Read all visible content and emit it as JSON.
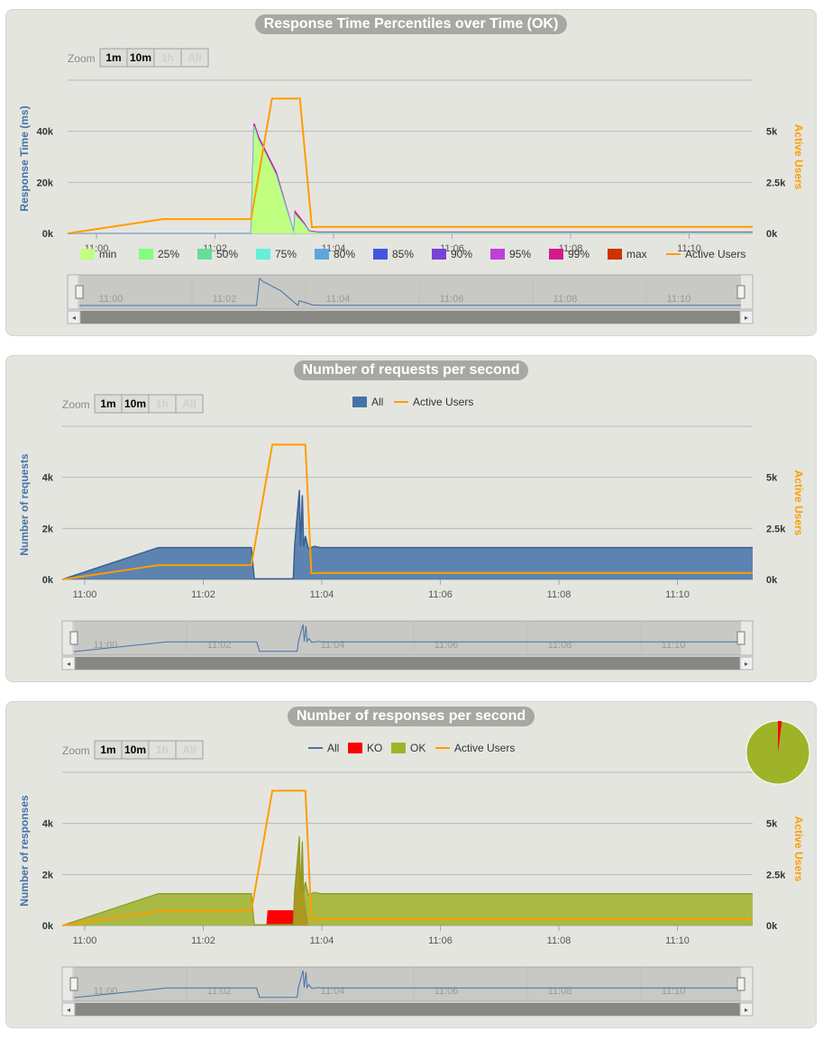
{
  "zoom_label": "Zoom",
  "zoom_buttons": [
    "1m",
    "10m",
    "1h",
    "All"
  ],
  "colors": {
    "panel_bg": "#e5e5e0",
    "active_users": "#ff9d00",
    "requests_all": "#4572a7",
    "responses_ok": "#9fb328",
    "responses_ko": "#ff0000",
    "percentile_min": "#c0ff80",
    "percentile_25": "#80ff80",
    "percentile_50": "#66dd99",
    "percentile_75": "#66eedd",
    "percentile_80": "#5ba6e0",
    "percentile_85": "#4455e0",
    "percentile_90": "#7a40d8",
    "percentile_95": "#c040d8",
    "percentile_99": "#d41a8a",
    "percentile_max": "#cc3300"
  },
  "chart_data": [
    {
      "type": "area",
      "title": "Response Time Percentiles over Time (OK)",
      "ylabel": "Response Time (ms)",
      "y2label": "Active Users",
      "xticks": [
        "11:00",
        "11:02",
        "11:04",
        "11:06",
        "11:08",
        "11:10"
      ],
      "yticks": [
        "0k",
        "20k",
        "40k"
      ],
      "y2ticks": [
        "0k",
        "2.5k",
        "5k"
      ],
      "ylim": [
        0,
        60000
      ],
      "y2lim": [
        0,
        7500
      ],
      "xlim_min": [
        0,
        11.5
      ],
      "legend": [
        "min",
        "25%",
        "50%",
        "75%",
        "80%",
        "85%",
        "90%",
        "95%",
        "99%",
        "max",
        "Active Users"
      ],
      "series": [
        {
          "name": "max",
          "x_min": [
            0,
            3.08,
            3.13,
            3.2,
            3.5,
            3.8,
            3.82,
            3.97,
            4.05,
            4.2,
            11.5
          ],
          "values": [
            0,
            0,
            43000,
            38000,
            24000,
            0,
            8500,
            4000,
            1000,
            500,
            500
          ]
        },
        {
          "name": "min",
          "x_min": [
            0,
            3.08,
            3.13,
            3.2,
            3.5,
            3.8,
            3.82,
            3.97,
            4.05,
            4.2,
            11.5
          ],
          "values": [
            0,
            0,
            42000,
            37000,
            23000,
            0,
            7500,
            3500,
            800,
            300,
            300
          ]
        },
        {
          "name": "Active Users",
          "x_min": [
            0,
            1.6,
            3.08,
            3.43,
            3.9,
            4.1,
            4.2,
            11.3,
            11.5
          ],
          "values": [
            0,
            700,
            700,
            6600,
            6600,
            300,
            320,
            320,
            320
          ]
        }
      ]
    },
    {
      "type": "area",
      "title": "Number of requests per second",
      "ylabel": "Number of requests",
      "y2label": "Active Users",
      "xticks": [
        "11:00",
        "11:02",
        "11:04",
        "11:06",
        "11:08",
        "11:10"
      ],
      "yticks": [
        "0k",
        "2k",
        "4k"
      ],
      "y2ticks": [
        "0k",
        "2.5k",
        "5k"
      ],
      "ylim": [
        0,
        6000
      ],
      "y2lim": [
        0,
        7500
      ],
      "xlim_min": [
        0,
        11.5
      ],
      "legend": [
        "All",
        "Active Users"
      ],
      "series": [
        {
          "name": "All",
          "x_min": [
            0,
            1.6,
            3.15,
            3.2,
            3.85,
            3.87,
            3.95,
            3.97,
            4.0,
            4.02,
            4.05,
            4.1,
            4.2,
            4.3,
            11.5
          ],
          "values": [
            0,
            1250,
            1250,
            30,
            30,
            1300,
            3500,
            1300,
            3300,
            1300,
            1700,
            1200,
            1300,
            1250,
            1250
          ]
        },
        {
          "name": "Active Users",
          "x_min": [
            0,
            1.6,
            3.15,
            3.5,
            4.05,
            4.15,
            4.25,
            11.3,
            11.5
          ],
          "values": [
            0,
            700,
            700,
            6600,
            6600,
            300,
            320,
            320,
            320
          ]
        }
      ]
    },
    {
      "type": "area",
      "title": "Number of responses per second",
      "ylabel": "Number of responses",
      "y2label": "Active Users",
      "xticks": [
        "11:00",
        "11:02",
        "11:04",
        "11:06",
        "11:08",
        "11:10"
      ],
      "yticks": [
        "0k",
        "2k",
        "4k"
      ],
      "y2ticks": [
        "0k",
        "2.5k",
        "5k"
      ],
      "ylim": [
        0,
        6000
      ],
      "y2lim": [
        0,
        7500
      ],
      "xlim_min": [
        0,
        11.5
      ],
      "legend": [
        "All",
        "KO",
        "OK",
        "Active Users"
      ],
      "pie": {
        "OK": 98,
        "KO": 2
      },
      "series": [
        {
          "name": "All",
          "x_min": [
            0,
            1.6,
            3.15,
            3.2,
            3.85,
            3.87,
            3.95,
            3.97,
            4.0,
            4.02,
            4.05,
            4.1,
            4.2,
            4.3,
            11.5
          ],
          "values": [
            0,
            1250,
            1250,
            30,
            50,
            1300,
            3500,
            1300,
            3300,
            1300,
            1700,
            1200,
            1300,
            1250,
            1250
          ]
        },
        {
          "name": "KO",
          "x_min": [
            3.15,
            3.4,
            3.42,
            3.85,
            3.87,
            3.95,
            3.97,
            4.0,
            4.02,
            4.1
          ],
          "values": [
            0,
            0,
            600,
            600,
            1400,
            3500,
            1400,
            3200,
            1400,
            0
          ]
        },
        {
          "name": "OK",
          "x_min": [
            0,
            1.6,
            3.15,
            3.2,
            3.85,
            3.87,
            3.95,
            3.97,
            4.0,
            4.02,
            4.05,
            4.1,
            4.2,
            4.3,
            11.5
          ],
          "values": [
            0,
            1250,
            1250,
            30,
            50,
            1300,
            3300,
            1300,
            3100,
            1300,
            1700,
            1200,
            1300,
            1250,
            1250
          ]
        },
        {
          "name": "Active Users",
          "x_min": [
            0,
            1.6,
            3.15,
            3.5,
            4.05,
            4.15,
            4.25,
            11.3,
            11.5
          ],
          "values": [
            0,
            700,
            700,
            6600,
            6600,
            300,
            320,
            320,
            320
          ]
        }
      ]
    }
  ]
}
